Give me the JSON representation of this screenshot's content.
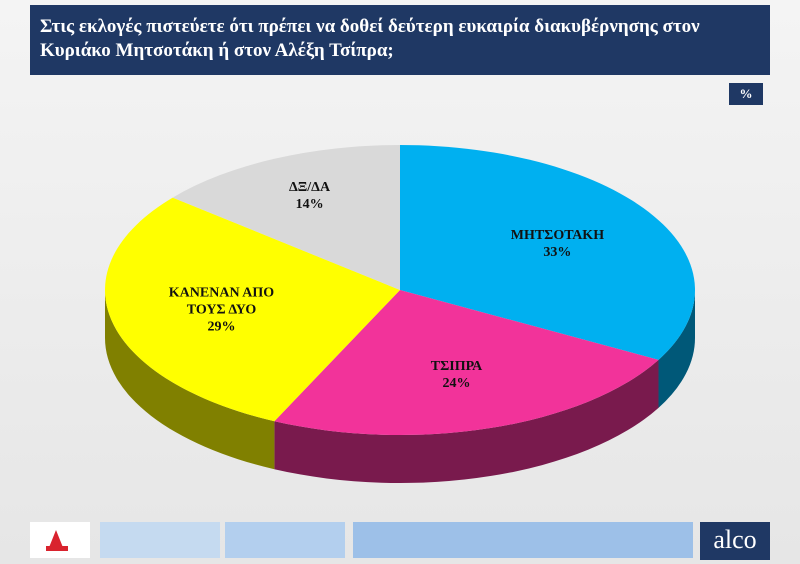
{
  "chart_data": {
    "type": "pie",
    "title": "Στις εκλογές πιστεύετε ότι πρέπει να δοθεί δεύτερη ευκαιρία διακυβέρνησης στον Κυριάκο Μητσοτάκη ή στον Αλέξη Τσίπρα;",
    "unit_label": "%",
    "categories": [
      "ΜΗΤΣΟΤΑΚΗ",
      "ΤΣΙΠΡΑ",
      "ΚΑΝΕΝΑΝ ΑΠΟ ΤΟΥΣ ΔΥΟ",
      "ΔΞ/ΔΑ"
    ],
    "values": [
      33,
      24,
      29,
      14
    ],
    "value_labels": [
      "33%",
      "24%",
      "29%",
      "14%"
    ],
    "colors": [
      "#00b0f0",
      "#f2339a",
      "#ffff00",
      "#d9d9d9"
    ]
  },
  "footer": {
    "logo": "alco"
  }
}
